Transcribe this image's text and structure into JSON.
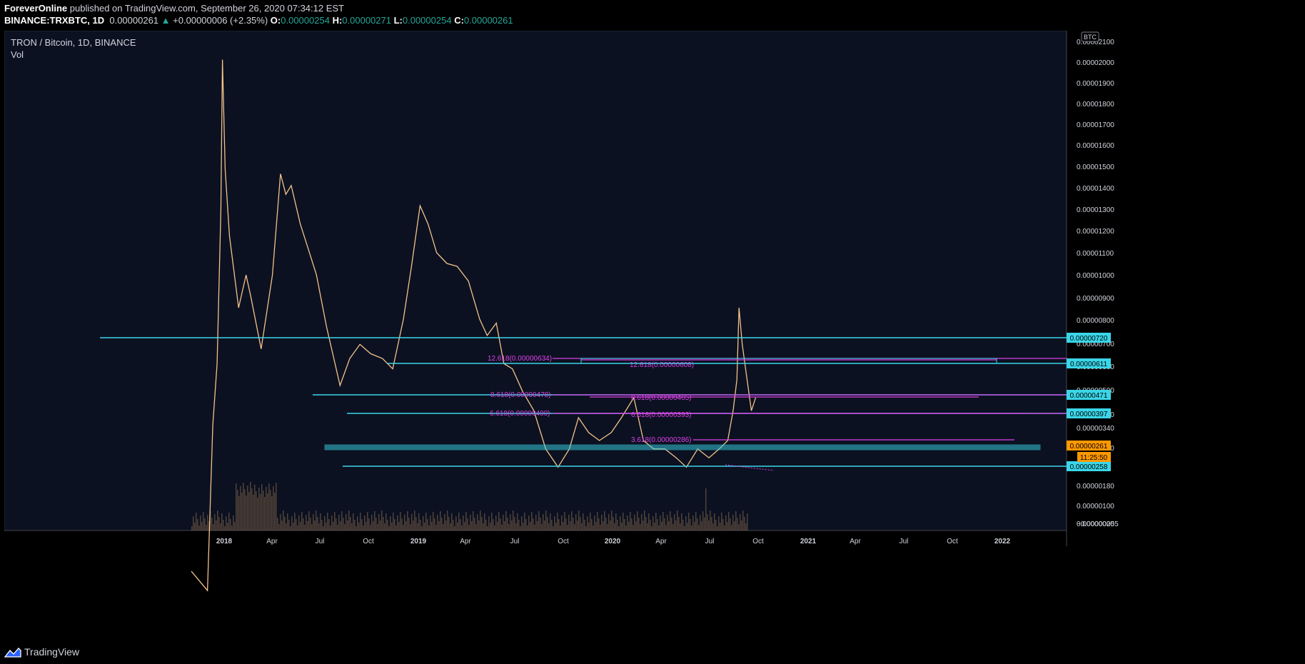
{
  "header": {
    "publisher": "ForeverOnline",
    "published_text": "published on TradingView.com, September 26, 2020 07:34:12 EST",
    "symbol": "BINANCE:TRXBTC, 1D",
    "price": "0.00000261",
    "change": "+0.00000006 (+2.35%)",
    "o_label": "O:",
    "o_value": "0.00000254",
    "h_label": "H:",
    "h_value": "0.00000271",
    "l_label": "L:",
    "l_value": "0.00000254",
    "c_label": "C:",
    "c_value": "0.00000261"
  },
  "legend": {
    "title": "TRON / Bitcoin, 1D, BINANCE",
    "volume": "Vol"
  },
  "footer": {
    "brand": "TradingView"
  },
  "colors": {
    "background": "#0b1121",
    "price_line": "#f3c28a",
    "horizontal_line": "#3ad6e8",
    "fib": "#e040e8",
    "current_price_tag": "#ff9800",
    "volume": "#8a6a4a"
  },
  "chart_data": {
    "type": "line",
    "title": "TRON / Bitcoin, 1D, BINANCE",
    "currency_badge": "BTC",
    "y_scale": "log",
    "x_ticks": [
      "2018",
      "Apr",
      "Jul",
      "Oct",
      "2019",
      "Apr",
      "Jul",
      "Oct",
      "2020",
      "Apr",
      "Jul",
      "Oct",
      "2021",
      "Apr",
      "Jul",
      "Oct",
      "2022"
    ],
    "y_ticks": [
      "0.00002100",
      "0.00002000",
      "0.00001900",
      "0.00001800",
      "0.00001700",
      "0.00001600",
      "0.00001500",
      "0.00001400",
      "0.00001300",
      "0.00001200",
      "0.00001100",
      "0.00001000",
      "0.00000900",
      "0.00000800",
      "0.00000700",
      "0.00000600",
      "0.00000500",
      "0.00000420",
      "0.00000340",
      "0.00000260",
      "0.00000180",
      "0.00000100",
      "0.00000020",
      "−0.00000055"
    ],
    "series": [
      {
        "values_description": "TRXBTC daily close (approx.)",
        "x": [
          "2017-11-10",
          "2017-12-10",
          "2017-12-20",
          "2017-12-28",
          "2018-01-04",
          "2018-01-07",
          "2018-01-12",
          "2018-01-20",
          "2018-02-06",
          "2018-02-20",
          "2018-03-01",
          "2018-03-20",
          "2018-04-10",
          "2018-04-25",
          "2018-05-05",
          "2018-05-15",
          "2018-06-01",
          "2018-06-15",
          "2018-07-01",
          "2018-07-20",
          "2018-08-14",
          "2018-09-01",
          "2018-09-20",
          "2018-10-10",
          "2018-11-01",
          "2018-11-20",
          "2018-12-10",
          "2018-12-25",
          "2019-01-10",
          "2019-01-25",
          "2019-02-10",
          "2019-03-01",
          "2019-03-20",
          "2019-04-10",
          "2019-05-01",
          "2019-05-15",
          "2019-06-01",
          "2019-06-15",
          "2019-07-01",
          "2019-07-20",
          "2019-08-10",
          "2019-09-01",
          "2019-09-24",
          "2019-10-15",
          "2019-11-01",
          "2019-11-20",
          "2019-12-10",
          "2020-01-01",
          "2020-01-20",
          "2020-02-12",
          "2020-03-01",
          "2020-03-20",
          "2020-04-10",
          "2020-05-01",
          "2020-05-20",
          "2020-06-10",
          "2020-07-01",
          "2020-07-20",
          "2020-08-05",
          "2020-08-15",
          "2020-08-22",
          "2020-08-26",
          "2020-09-01",
          "2020-09-10",
          "2020-09-18",
          "2020-09-26"
        ],
        "y": [
          9e-07,
          8e-07,
          2.2e-06,
          3.2e-06,
          8.2e-06,
          2.05e-05,
          1.05e-05,
          7e-06,
          4.5e-06,
          5.5e-06,
          4.8e-06,
          3.5e-06,
          5.5e-06,
          1.02e-05,
          9e-06,
          9.5e-06,
          7.5e-06,
          6.5e-06,
          5.5e-06,
          4e-06,
          2.8e-06,
          3.3e-06,
          3.6e-06,
          3.4e-06,
          3.3e-06,
          3.1e-06,
          4.2e-06,
          5.8e-06,
          8.4e-06,
          7.5e-06,
          6.3e-06,
          5.9e-06,
          5.8e-06,
          5.3e-06,
          4.2e-06,
          3.8e-06,
          4.1e-06,
          3.2e-06,
          3.1e-06,
          2.7e-06,
          2.4e-06,
          1.9e-06,
          1.7e-06,
          1.9e-06,
          2.3e-06,
          2.1e-06,
          2e-06,
          2.1e-06,
          2.3e-06,
          2.6e-06,
          2e-06,
          1.9e-06,
          1.9e-06,
          1.8e-06,
          1.7e-06,
          1.9e-06,
          1.8e-06,
          1.9e-06,
          2e-06,
          2.4e-06,
          2.9e-06,
          4.5e-06,
          3.6e-06,
          2.9e-06,
          2.4e-06,
          2.6e-06
        ]
      }
    ],
    "horizontal_lines": [
      {
        "price_label": "0.00000720"
      },
      {
        "price_label": "0.00000611"
      },
      {
        "price_label": "0.00000471"
      },
      {
        "price_label": "0.00000397"
      },
      {
        "price_label": "0.00000258"
      }
    ],
    "current_price": {
      "label": "0.00000261",
      "countdown": "11:25:50"
    },
    "fib_labels": [
      "12.618(0.00000634)",
      "8.618(0.00000478)",
      "6.618(0.00000400)",
      "3.618(0.00000286)",
      "12.618(0.00000608)",
      "8.618(0.00000465)",
      "6.618(0.00000393)"
    ]
  }
}
